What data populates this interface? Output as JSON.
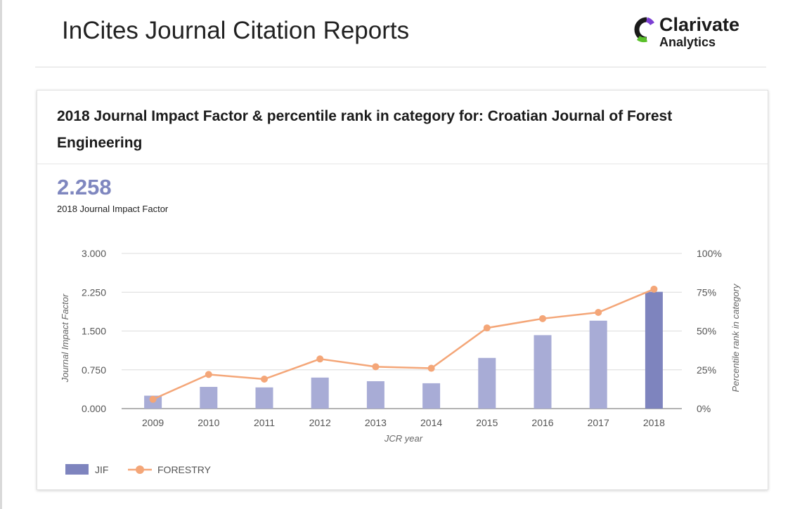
{
  "header": {
    "title": "InCites Journal Citation Reports"
  },
  "logo": {
    "name": "Clarivate",
    "sub": "Analytics",
    "icon": "clarivate-logo-icon"
  },
  "card": {
    "title": "2018 Journal Impact Factor & percentile rank in category for: Croatian Journal of Forest Engineering",
    "jif_value": "2.258",
    "jif_label": "2018 Journal Impact Factor"
  },
  "chart_data": {
    "type": "bar",
    "xlabel": "JCR year",
    "ylabel": "Journal Impact Factor",
    "y2label": "Percentile rank in category",
    "categories": [
      "2009",
      "2010",
      "2011",
      "2012",
      "2013",
      "2014",
      "2015",
      "2016",
      "2017",
      "2018"
    ],
    "ylim": [
      0,
      3
    ],
    "y_ticks": [
      "0.000",
      "0.750",
      "1.500",
      "2.250",
      "3.000"
    ],
    "y2lim": [
      0,
      100
    ],
    "y2_ticks": [
      "0%",
      "25%",
      "50%",
      "75%",
      "100%"
    ],
    "grid": true,
    "legend": "bottom-left",
    "series": [
      {
        "name": "JIF",
        "type": "bar",
        "axis": "left",
        "color": "#a8acd6",
        "highlight_color": "#7e84be",
        "values": [
          0.25,
          0.42,
          0.41,
          0.6,
          0.53,
          0.49,
          0.98,
          1.42,
          1.7,
          2.258
        ]
      },
      {
        "name": "FORESTRY",
        "type": "line",
        "axis": "right",
        "color": "#f4a678",
        "values": [
          6,
          22,
          19,
          32,
          27,
          26,
          52,
          58,
          62,
          77
        ]
      }
    ]
  }
}
